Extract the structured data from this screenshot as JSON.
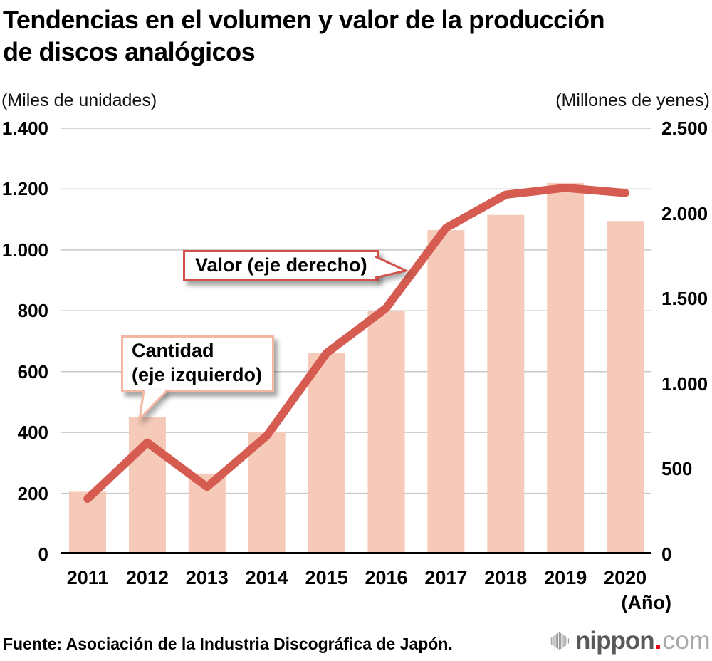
{
  "title_lines": [
    "Tendencias en el volumen y valor de la producción",
    "de discos analógicos"
  ],
  "left_axis": {
    "unit": "(Miles de unidades)",
    "ticks": [
      {
        "label": "1.400",
        "value": 1400
      },
      {
        "label": "1.200",
        "value": 1200
      },
      {
        "label": "1.000",
        "value": 1000
      },
      {
        "label": "800",
        "value": 800
      },
      {
        "label": "600",
        "value": 600
      },
      {
        "label": "400",
        "value": 400
      },
      {
        "label": "200",
        "value": 200
      },
      {
        "label": "0",
        "value": 0
      }
    ]
  },
  "right_axis": {
    "unit": "(Millones de yenes)",
    "ticks": [
      {
        "label": "2.500",
        "value": 2500
      },
      {
        "label": "2.000",
        "value": 2000
      },
      {
        "label": "1.500",
        "value": 1500
      },
      {
        "label": "1.000",
        "value": 1000
      },
      {
        "label": "500",
        "value": 500
      },
      {
        "label": "0",
        "value": 0
      }
    ]
  },
  "x_axis": {
    "caption": "(Año)"
  },
  "callouts": {
    "value_label": "Valor (eje derecho)",
    "quantity_label_lines": [
      "Cantidad",
      "(eje izquierdo)"
    ]
  },
  "footer": {
    "source": "Fuente: Asociación de la Industria Discográfica de Japón.",
    "logo": {
      "main": "nippon",
      "dot": ".",
      "tld": "com"
    }
  },
  "colors": {
    "bar_fill": "#f6cab8",
    "line": "#d65c51",
    "valor_callout_border": "#d0524b",
    "cantidad_callout_border": "#f3b8a3",
    "grid": "#c8c8c8",
    "axis": "#000000",
    "logo_gray": "#595959",
    "logo_light_gray": "#a9a9a9",
    "logo_icon_gray": "#9b9b9b",
    "logo_red": "#e60012"
  },
  "chart_data": {
    "type": "combo-bar-line",
    "title": "Tendencias en el volumen y valor de la producción de discos analógicos",
    "categories": [
      "2011",
      "2012",
      "2013",
      "2014",
      "2015",
      "2016",
      "2017",
      "2018",
      "2019",
      "2020"
    ],
    "series": [
      {
        "name": "Cantidad (eje izquierdo)",
        "type": "bar",
        "axis": "left",
        "unit": "Miles de unidades",
        "values": [
          205,
          450,
          265,
          400,
          660,
          800,
          1065,
          1115,
          1220,
          1095
        ]
      },
      {
        "name": "Valor (eje derecho)",
        "type": "line",
        "axis": "right",
        "unit": "Millones de yenes",
        "values": [
          325,
          655,
          395,
          695,
          1180,
          1445,
          1915,
          2110,
          2150,
          2120
        ]
      }
    ],
    "left_ylabel": "(Miles de unidades)",
    "right_ylabel": "(Millones de yenes)",
    "xlabel": "(Año)",
    "left_ylim": [
      0,
      1400
    ],
    "right_ylim": [
      0,
      2500
    ],
    "grid": "horizontal-only",
    "legend_position": "callouts-inside-plot"
  }
}
